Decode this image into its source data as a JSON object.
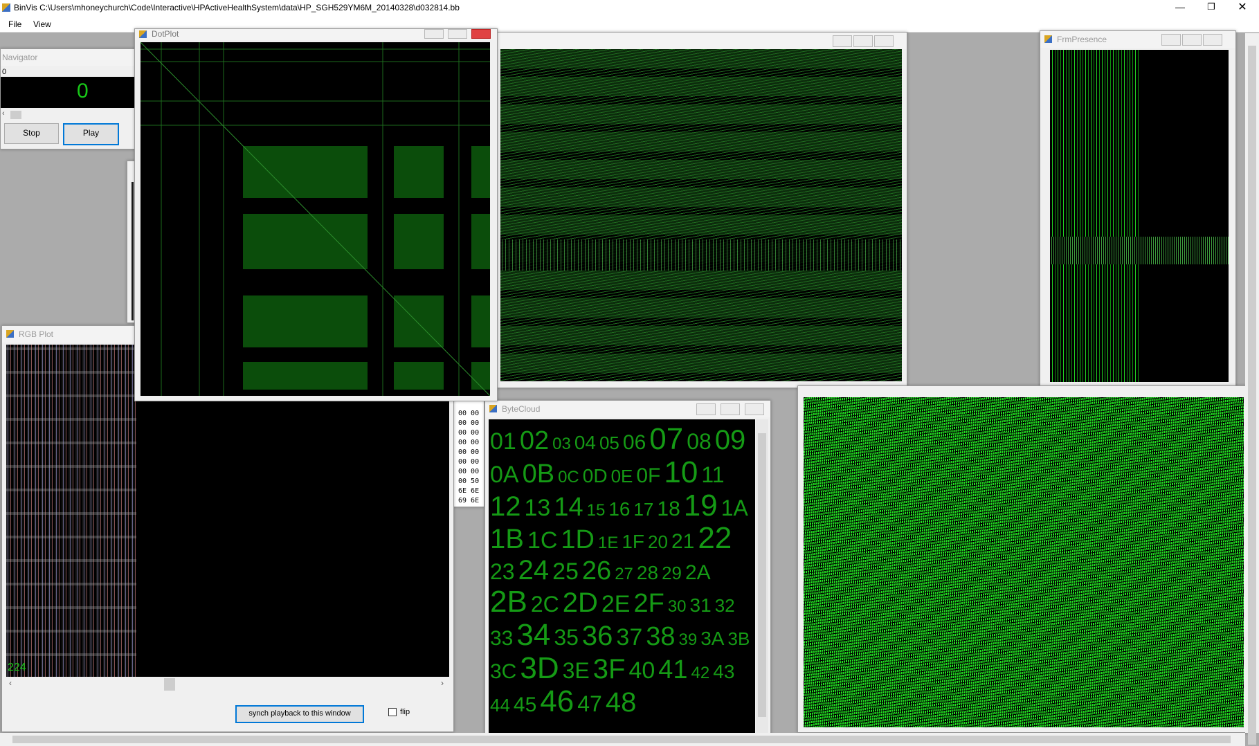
{
  "title_bar": {
    "title": "BinVis C:\\Users\\mhoneychurch\\Code\\Interactive\\HPActiveHealthSystem\\data\\HP_SGH529YM6M_20140328\\d032814.bb"
  },
  "menu": [
    "File",
    "View"
  ],
  "navigator": {
    "title": "Navigator",
    "position_label": "0",
    "position": "0",
    "buttons": [
      "Stop",
      "Play"
    ]
  },
  "rgb_plot": {
    "title": "RGB Plot",
    "offset_label": "224",
    "sync_button": "synch playback to this window",
    "flip_label": "flip"
  },
  "dot_plot": {
    "title": "DotPlot"
  },
  "frm_presence": {
    "title": "FrmPresence"
  },
  "hex_dump": {
    "lines": [
      "00 00",
      "00 00",
      "00 00",
      "00 00",
      "00 00",
      "00 00",
      "00 00",
      "00 50",
      "6E 6E",
      "69 6E"
    ]
  },
  "byte_cloud": {
    "title": "ByteCloud",
    "tokens": [
      "01",
      "02",
      "03",
      "04",
      "05",
      "06",
      "07",
      "08",
      "09",
      "0A",
      "0B",
      "0C",
      "0D",
      "0E",
      "0F",
      "10",
      "11",
      "12",
      "13",
      "14",
      "15",
      "16",
      "17",
      "18",
      "19",
      "1A",
      "1B",
      "1C",
      "1D",
      "1E",
      "1F",
      "20",
      "21",
      "22",
      "23",
      "24",
      "25",
      "26",
      "27",
      "28",
      "29",
      "2A",
      "2B",
      "2C",
      "2D",
      "2E",
      "2F",
      "30",
      "31",
      "32",
      "33",
      "34",
      "35",
      "36",
      "37",
      "38",
      "39",
      "3A",
      "3B",
      "3C",
      "3D",
      "3E",
      "3F",
      "40",
      "41",
      "42",
      "43",
      "44",
      "45",
      "46",
      "47",
      "48"
    ]
  }
}
